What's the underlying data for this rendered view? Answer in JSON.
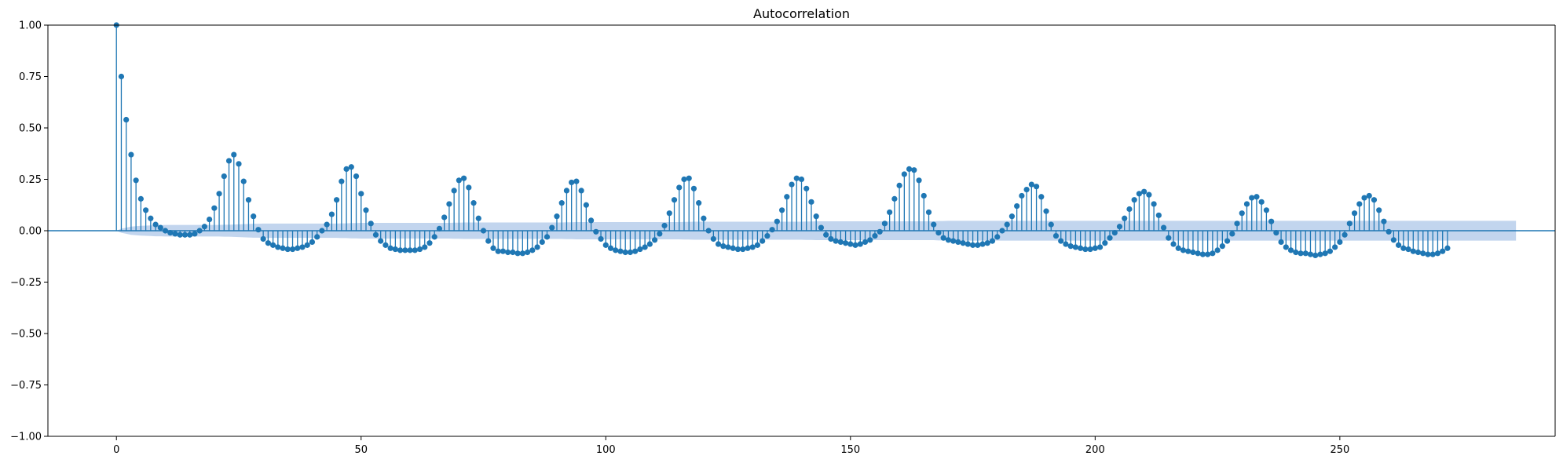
{
  "chart_data": {
    "type": "stem",
    "title": "Autocorrelation",
    "xlabel": "",
    "ylabel": "",
    "xlim": [
      -14,
      294
    ],
    "ylim": [
      -1.0,
      1.0
    ],
    "xticks": [
      0,
      50,
      100,
      150,
      200,
      250
    ],
    "xtick_labels": [
      "0",
      "50",
      "100",
      "150",
      "200",
      "250"
    ],
    "yticks": [
      1.0,
      0.75,
      0.5,
      0.25,
      0.0,
      -0.25,
      -0.5,
      -0.75,
      -1.0
    ],
    "ytick_labels": [
      "1.00",
      "0.75",
      "0.50",
      "0.25",
      "0.00",
      "−0.25",
      "−0.50",
      "−0.75",
      "−1.00"
    ],
    "grid": false,
    "color": "#1f77b4",
    "confidence_band_color": "#aec7e8",
    "lags_start": 0,
    "values": [
      1.0,
      0.75,
      0.54,
      0.37,
      0.245,
      0.155,
      0.1,
      0.06,
      0.03,
      0.015,
      0.0,
      -0.01,
      -0.015,
      -0.02,
      -0.02,
      -0.02,
      -0.015,
      0.0,
      0.02,
      0.055,
      0.11,
      0.18,
      0.265,
      0.34,
      0.37,
      0.325,
      0.24,
      0.15,
      0.07,
      0.005,
      -0.04,
      -0.06,
      -0.07,
      -0.08,
      -0.085,
      -0.09,
      -0.09,
      -0.085,
      -0.08,
      -0.07,
      -0.055,
      -0.03,
      0.0,
      0.03,
      0.08,
      0.15,
      0.24,
      0.3,
      0.31,
      0.265,
      0.18,
      0.1,
      0.035,
      -0.02,
      -0.05,
      -0.07,
      -0.085,
      -0.09,
      -0.095,
      -0.095,
      -0.095,
      -0.095,
      -0.09,
      -0.08,
      -0.06,
      -0.03,
      0.01,
      0.065,
      0.13,
      0.195,
      0.245,
      0.255,
      0.21,
      0.135,
      0.06,
      0.0,
      -0.05,
      -0.085,
      -0.1,
      -0.1,
      -0.105,
      -0.105,
      -0.11,
      -0.11,
      -0.105,
      -0.095,
      -0.08,
      -0.055,
      -0.03,
      0.015,
      0.07,
      0.135,
      0.195,
      0.235,
      0.24,
      0.195,
      0.125,
      0.05,
      -0.005,
      -0.04,
      -0.07,
      -0.085,
      -0.095,
      -0.1,
      -0.105,
      -0.105,
      -0.1,
      -0.09,
      -0.08,
      -0.065,
      -0.045,
      -0.015,
      0.025,
      0.085,
      0.15,
      0.21,
      0.25,
      0.255,
      0.205,
      0.135,
      0.06,
      0.0,
      -0.04,
      -0.065,
      -0.075,
      -0.08,
      -0.085,
      -0.09,
      -0.09,
      -0.085,
      -0.08,
      -0.07,
      -0.05,
      -0.025,
      0.005,
      0.045,
      0.1,
      0.165,
      0.225,
      0.255,
      0.25,
      0.205,
      0.14,
      0.07,
      0.015,
      -0.02,
      -0.04,
      -0.05,
      -0.055,
      -0.06,
      -0.065,
      -0.07,
      -0.065,
      -0.055,
      -0.045,
      -0.025,
      -0.005,
      0.035,
      0.09,
      0.155,
      0.22,
      0.275,
      0.3,
      0.295,
      0.245,
      0.17,
      0.09,
      0.03,
      -0.01,
      -0.035,
      -0.045,
      -0.05,
      -0.055,
      -0.06,
      -0.065,
      -0.07,
      -0.07,
      -0.065,
      -0.06,
      -0.05,
      -0.03,
      0.0,
      0.03,
      0.07,
      0.12,
      0.17,
      0.2,
      0.225,
      0.215,
      0.165,
      0.095,
      0.03,
      -0.025,
      -0.05,
      -0.065,
      -0.075,
      -0.08,
      -0.085,
      -0.09,
      -0.09,
      -0.085,
      -0.08,
      -0.06,
      -0.035,
      -0.01,
      0.02,
      0.06,
      0.105,
      0.15,
      0.18,
      0.19,
      0.175,
      0.13,
      0.075,
      0.015,
      -0.035,
      -0.065,
      -0.085,
      -0.095,
      -0.1,
      -0.105,
      -0.11,
      -0.115,
      -0.115,
      -0.11,
      -0.095,
      -0.075,
      -0.05,
      -0.015,
      0.035,
      0.085,
      0.13,
      0.16,
      0.165,
      0.14,
      0.1,
      0.045,
      -0.01,
      -0.055,
      -0.08,
      -0.095,
      -0.105,
      -0.11,
      -0.11,
      -0.115,
      -0.12,
      -0.115,
      -0.11,
      -0.1,
      -0.08,
      -0.055,
      -0.02,
      0.035,
      0.085,
      0.13,
      0.16,
      0.17,
      0.15,
      0.1,
      0.045,
      -0.005,
      -0.045,
      -0.07,
      -0.085,
      -0.09,
      -0.1,
      -0.105,
      -0.11,
      -0.115,
      -0.115,
      -0.11,
      -0.1,
      -0.085
    ],
    "confidence_band": [
      0.0,
      0.01,
      0.015,
      0.02,
      0.022,
      0.024,
      0.025,
      0.026,
      0.027,
      0.027,
      0.028,
      0.028,
      0.028,
      0.028,
      0.028,
      0.028,
      0.028,
      0.028,
      0.028,
      0.028,
      0.028,
      0.028,
      0.029,
      0.029,
      0.03,
      0.031,
      0.032,
      0.033,
      0.034,
      0.034,
      0.035,
      0.035,
      0.035,
      0.035,
      0.035,
      0.035,
      0.035,
      0.035,
      0.035,
      0.035,
      0.035,
      0.035,
      0.035,
      0.035,
      0.035,
      0.035,
      0.036,
      0.036,
      0.037,
      0.037,
      0.038,
      0.038,
      0.038,
      0.038,
      0.038,
      0.038,
      0.038,
      0.038,
      0.038,
      0.038,
      0.038,
      0.038,
      0.038,
      0.038,
      0.038,
      0.038,
      0.038,
      0.038,
      0.038,
      0.039,
      0.039,
      0.04,
      0.04,
      0.04,
      0.04,
      0.04,
      0.04,
      0.04,
      0.04,
      0.04,
      0.04,
      0.04,
      0.04,
      0.04,
      0.04,
      0.04,
      0.04,
      0.04,
      0.04,
      0.04,
      0.04,
      0.04,
      0.041,
      0.041,
      0.042,
      0.042,
      0.042,
      0.042,
      0.042,
      0.042,
      0.042,
      0.042,
      0.042,
      0.042,
      0.042,
      0.042,
      0.042,
      0.042,
      0.042,
      0.042,
      0.042,
      0.042,
      0.042,
      0.042,
      0.042,
      0.042,
      0.043,
      0.043,
      0.044,
      0.044,
      0.044,
      0.044,
      0.044,
      0.044,
      0.044,
      0.044,
      0.044,
      0.044,
      0.044,
      0.044,
      0.044,
      0.044,
      0.044,
      0.044,
      0.044,
      0.044,
      0.044,
      0.044,
      0.044,
      0.044,
      0.044,
      0.045,
      0.045,
      0.046,
      0.046,
      0.046,
      0.046,
      0.046,
      0.046,
      0.046,
      0.046,
      0.046,
      0.046,
      0.046,
      0.046,
      0.046,
      0.046,
      0.046,
      0.046,
      0.046,
      0.046,
      0.046,
      0.046,
      0.046,
      0.046,
      0.046,
      0.046,
      0.046,
      0.047,
      0.047,
      0.048,
      0.048,
      0.048,
      0.048,
      0.048,
      0.048,
      0.048,
      0.048,
      0.048,
      0.048,
      0.048,
      0.048,
      0.048,
      0.048,
      0.048,
      0.048,
      0.048,
      0.048,
      0.048,
      0.048,
      0.048,
      0.048,
      0.048,
      0.048,
      0.048,
      0.048,
      0.048,
      0.048,
      0.048,
      0.048,
      0.048,
      0.048,
      0.048,
      0.048,
      0.048,
      0.048,
      0.048,
      0.048,
      0.048,
      0.048,
      0.048,
      0.048,
      0.048,
      0.048,
      0.048,
      0.048,
      0.048,
      0.048,
      0.048,
      0.048,
      0.048,
      0.048,
      0.048,
      0.048,
      0.048,
      0.048,
      0.048,
      0.048,
      0.048,
      0.048,
      0.048,
      0.048,
      0.048,
      0.048,
      0.048,
      0.048,
      0.048,
      0.048,
      0.048,
      0.048,
      0.048,
      0.048,
      0.048,
      0.048,
      0.048,
      0.048,
      0.048,
      0.048,
      0.048,
      0.048,
      0.048,
      0.048,
      0.048,
      0.048,
      0.048,
      0.048,
      0.048,
      0.048,
      0.048,
      0.048,
      0.048,
      0.048,
      0.048,
      0.048,
      0.048,
      0.048,
      0.048,
      0.048,
      0.048,
      0.048,
      0.048,
      0.048,
      0.048,
      0.048,
      0.048,
      0.048,
      0.048,
      0.048,
      0.048,
      0.048,
      0.048,
      0.048,
      0.048,
      0.048,
      0.048,
      0.048,
      0.048
    ]
  }
}
